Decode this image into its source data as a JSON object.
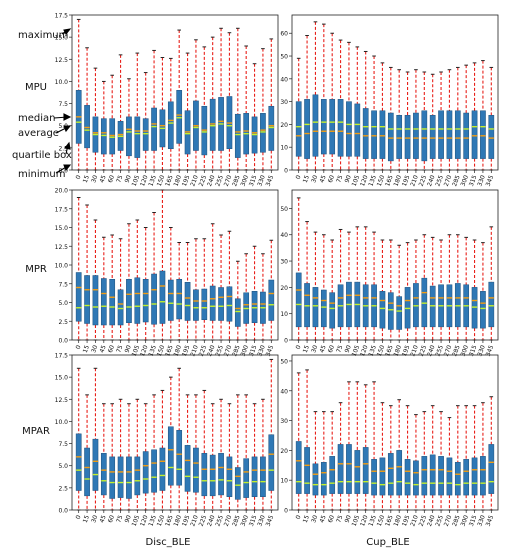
{
  "chart_data": {
    "type": "boxplot",
    "categories": [
      "0",
      "15",
      "30",
      "45",
      "60",
      "75",
      "90",
      "105",
      "120",
      "135",
      "150",
      "165",
      "180",
      "195",
      "210",
      "225",
      "240",
      "255",
      "270",
      "285",
      "300",
      "315",
      "330",
      "345"
    ],
    "row_labels": [
      "MPU",
      "MPR",
      "MPAR"
    ],
    "column_labels": [
      "Disc_BLE",
      "Cup_BLE"
    ],
    "annotations": [
      "maximum",
      "median",
      "average",
      "quartile box",
      "minimum"
    ],
    "colors": {
      "box": "#2f78b5",
      "whisker": "#e8201a",
      "median": "#f39c12",
      "mean": "#c6f02a",
      "cap": "#222222"
    },
    "panels": [
      {
        "row": "MPU",
        "column": "Disc_BLE",
        "ylim": [
          0,
          17.5
        ],
        "yticks": [
          "0.0",
          "2.5",
          "5.0",
          "7.5",
          "10.0",
          "12.5",
          "15.0",
          "17.5"
        ],
        "max": [
          17,
          13.8,
          11.5,
          10,
          10.7,
          13,
          10.3,
          13.2,
          11,
          13.5,
          12.7,
          12.6,
          15.8,
          13.2,
          14.7,
          13.9,
          15,
          16,
          15.5,
          16,
          14,
          12,
          13.7,
          14.8
        ],
        "q3": [
          9,
          7.3,
          6,
          5.8,
          5.8,
          5.5,
          6,
          6,
          5.8,
          7,
          6.8,
          7.7,
          9,
          6.7,
          7.8,
          7.2,
          8,
          8.2,
          8.3,
          6.3,
          6.4,
          6,
          6.4,
          7.2
        ],
        "median": [
          6,
          4.8,
          4.2,
          4.2,
          3.9,
          4,
          4.6,
          4.4,
          4.4,
          5.2,
          5,
          5.6,
          6.2,
          4.3,
          5,
          4.5,
          5.2,
          5.5,
          5.3,
          4.3,
          4.4,
          4.2,
          4.5,
          5
        ],
        "mean": [
          5.4,
          4.5,
          4,
          3.9,
          3.7,
          3.8,
          4.3,
          4.1,
          4.1,
          4.9,
          4.7,
          5.3,
          5.9,
          4.1,
          4.8,
          4.3,
          5,
          5.2,
          5,
          4,
          4.1,
          4,
          4.3,
          4.8
        ],
        "q1": [
          3,
          2.5,
          2,
          1.8,
          1.8,
          2.2,
          1.6,
          1.4,
          2.2,
          2.2,
          2.6,
          2.4,
          3,
          1.8,
          2.2,
          1.7,
          2.2,
          2.2,
          2.4,
          1.4,
          1.8,
          1.9,
          2,
          2.2
        ],
        "min": [
          0,
          0,
          0,
          0,
          0,
          0,
          0,
          0,
          0,
          0,
          0,
          0,
          0,
          0,
          0,
          0,
          0,
          0,
          0,
          0,
          0,
          0,
          0,
          0
        ]
      },
      {
        "row": "MPU",
        "column": "Cup_BLE",
        "ylim": [
          0,
          68
        ],
        "yticks": [
          "0",
          "10",
          "20",
          "30",
          "40",
          "50",
          "60"
        ],
        "max": [
          49,
          59,
          65,
          64,
          60,
          57,
          56,
          54,
          52,
          50,
          47,
          45,
          44,
          43,
          44,
          43,
          42,
          43,
          44,
          45,
          46,
          47,
          48,
          45
        ],
        "q3": [
          30,
          31,
          33,
          31,
          31,
          31,
          30,
          29,
          27,
          26,
          26,
          25,
          24,
          24,
          25,
          26,
          24,
          26,
          26,
          26,
          25,
          26,
          26,
          24
        ],
        "median": [
          15,
          16,
          17,
          17,
          17,
          17,
          16,
          16,
          15,
          15,
          15,
          14,
          14,
          14,
          14,
          14,
          14,
          14,
          14,
          14,
          14,
          15,
          15,
          14
        ],
        "mean": [
          19,
          20,
          21,
          21,
          21,
          21,
          20,
          20,
          19,
          19,
          19,
          18,
          18,
          18,
          18,
          18,
          18,
          18,
          18,
          18,
          18,
          19,
          19,
          18
        ],
        "q1": [
          6,
          5,
          6,
          7,
          7,
          6,
          6,
          6,
          5,
          5,
          5,
          4,
          5,
          5,
          5,
          4,
          5,
          5,
          5,
          5,
          5,
          5,
          5,
          5
        ],
        "min": [
          0,
          0,
          0,
          0,
          0,
          0,
          0,
          0,
          0,
          0,
          0,
          0,
          0,
          0,
          0,
          0,
          0,
          0,
          0,
          0,
          0,
          0,
          0,
          0
        ]
      },
      {
        "row": "MPR",
        "column": "Disc_BLE",
        "ylim": [
          0,
          20
        ],
        "yticks": [
          "0.0",
          "2.5",
          "5.0",
          "7.5",
          "10.0",
          "12.5",
          "15.0",
          "17.5",
          "20.0"
        ],
        "max": [
          19,
          18,
          16,
          13.7,
          14,
          13.5,
          15.5,
          16,
          15,
          17,
          20,
          15,
          13,
          13,
          13.5,
          13.5,
          15.5,
          14,
          14.5,
          10.5,
          11.5,
          12.5,
          11.5,
          13.3
        ],
        "q3": [
          9,
          8.6,
          8.6,
          8.2,
          8.1,
          6.7,
          8.1,
          8.3,
          8.1,
          8.8,
          9.2,
          8,
          8.1,
          7.7,
          6.7,
          6.8,
          7.2,
          7,
          7.1,
          5.5,
          6.3,
          6.5,
          6.4,
          8
        ],
        "median": [
          7,
          6.7,
          6.7,
          6.2,
          5.7,
          4.8,
          6.1,
          6.2,
          6.2,
          6.7,
          7.2,
          6.2,
          6.2,
          5.6,
          5.2,
          5.2,
          5.5,
          5.7,
          5.8,
          4.2,
          4.7,
          4.8,
          4.8,
          6.2
        ],
        "mean": [
          4.3,
          4.6,
          4.4,
          4.5,
          4.4,
          4.2,
          4.4,
          4.5,
          4.6,
          4.8,
          5.1,
          4.9,
          4.8,
          4.6,
          4.3,
          4.3,
          4.5,
          4.5,
          4.6,
          3.8,
          4.2,
          4.3,
          4.3,
          4.7
        ],
        "q1": [
          2.5,
          2.2,
          2,
          2,
          2,
          2,
          2.3,
          2.2,
          2.4,
          2.1,
          2.2,
          2.6,
          2.8,
          2.6,
          2.6,
          2.7,
          2.6,
          2.6,
          2.5,
          1.8,
          2.2,
          2.3,
          2.2,
          2.6
        ],
        "min": [
          0,
          0,
          0,
          0,
          0,
          0,
          0,
          0,
          0,
          0,
          0,
          0,
          0,
          0,
          0,
          0,
          0,
          0,
          0,
          0,
          0,
          0,
          0,
          0
        ]
      },
      {
        "row": "MPR",
        "column": "Cup_BLE",
        "ylim": [
          0,
          57
        ],
        "yticks": [
          "0",
          "10",
          "20",
          "30",
          "40",
          "50"
        ],
        "max": [
          54,
          45,
          41,
          40,
          38,
          42,
          41,
          43,
          43,
          41,
          38,
          38,
          36,
          37,
          38,
          40,
          39,
          38,
          40,
          40,
          39,
          38,
          37,
          43
        ],
        "q3": [
          25.5,
          21.5,
          20,
          19,
          18,
          21,
          22,
          22,
          21,
          21,
          18.5,
          18,
          16.5,
          20,
          21.5,
          23.5,
          20.5,
          21,
          21,
          21.5,
          21,
          20,
          18.5,
          22
        ],
        "median": [
          19,
          17,
          16,
          15,
          14,
          16,
          17,
          17,
          16,
          16,
          15,
          14,
          13,
          15,
          16,
          18,
          16,
          16,
          16,
          16,
          16,
          15,
          14,
          16
        ],
        "mean": [
          13.5,
          13,
          13,
          12.5,
          12,
          13,
          13.5,
          13.5,
          13,
          13,
          12,
          11.5,
          11,
          12,
          13,
          14,
          13,
          13,
          13,
          13,
          13,
          12.5,
          12,
          13
        ],
        "q1": [
          5,
          5,
          5,
          5,
          4.5,
          5,
          5,
          5,
          5,
          5,
          4.5,
          4,
          4,
          4.5,
          5,
          5,
          5,
          5,
          5,
          5,
          5,
          4.5,
          4.5,
          5
        ],
        "min": [
          0,
          0,
          0,
          0,
          0,
          0,
          0,
          0,
          0,
          0,
          0,
          0,
          0,
          0,
          0,
          0,
          0,
          0,
          0,
          0,
          0,
          0,
          0,
          0
        ]
      },
      {
        "row": "MPAR",
        "column": "Disc_BLE",
        "ylim": [
          0,
          17.5
        ],
        "yticks": [
          "0.0",
          "2.5",
          "5.0",
          "7.5",
          "10.0",
          "12.5",
          "15.0",
          "17.5"
        ],
        "max": [
          16,
          13,
          16,
          12,
          12,
          12.5,
          12,
          12.5,
          12,
          13,
          13.5,
          15,
          16,
          13,
          13,
          13.5,
          12,
          12.5,
          12,
          13,
          13,
          12,
          12.5,
          17
        ],
        "q3": [
          8.6,
          7,
          8,
          6.4,
          6,
          6,
          6,
          6,
          6.6,
          6.8,
          7,
          9.4,
          9,
          7.3,
          7,
          6.4,
          6.2,
          6.4,
          6,
          4.8,
          5.8,
          6,
          6,
          8.5
        ],
        "median": [
          6,
          4.8,
          5.5,
          4.5,
          4.3,
          4.3,
          4.3,
          4.5,
          5,
          5.3,
          5.5,
          6.8,
          6.3,
          5.6,
          5.3,
          4.6,
          4.6,
          4.8,
          4.6,
          3.8,
          4.3,
          4.5,
          4.5,
          6.3
        ],
        "mean": [
          4.5,
          3.5,
          4,
          3.3,
          3.1,
          3.1,
          3.1,
          3.3,
          3.5,
          3.7,
          3.9,
          4.8,
          4.6,
          3.8,
          3.7,
          3.3,
          3.3,
          3.4,
          3.3,
          2.8,
          3.1,
          3.2,
          3.2,
          4.5
        ],
        "q1": [
          2.2,
          1.6,
          2.2,
          1.7,
          1.3,
          1.4,
          1.3,
          1.7,
          1.9,
          2,
          2.2,
          2.8,
          2.8,
          2.1,
          2,
          1.6,
          1.6,
          1.7,
          1.5,
          1.2,
          1.4,
          1.5,
          1.5,
          2.2
        ],
        "min": [
          0,
          0,
          0,
          0,
          0,
          0,
          0,
          0,
          0,
          0,
          0,
          0,
          0,
          0,
          0,
          0,
          0,
          0,
          0,
          0,
          0,
          0,
          0,
          0
        ]
      },
      {
        "row": "MPAR",
        "column": "Cup_BLE",
        "ylim": [
          0,
          52
        ],
        "yticks": [
          "0",
          "10",
          "20",
          "30",
          "40",
          "50"
        ],
        "max": [
          46,
          47,
          33,
          33,
          33,
          36,
          43,
          43,
          42,
          43,
          36,
          35,
          37,
          35,
          32,
          33,
          35,
          33,
          31,
          35,
          35,
          35,
          36,
          38
        ],
        "q3": [
          23,
          21,
          15.5,
          16,
          18,
          22,
          22,
          20,
          21,
          17,
          17.5,
          19,
          20,
          17,
          16.5,
          18,
          18.5,
          18,
          17.5,
          16,
          17,
          17.5,
          18,
          22
        ],
        "median": [
          16.5,
          15,
          12,
          12.5,
          13.5,
          15.5,
          15.5,
          14.5,
          15.5,
          13,
          13,
          14,
          14.5,
          13,
          12.5,
          13.5,
          13.5,
          13.5,
          13,
          12,
          13,
          13.5,
          13.5,
          16
        ],
        "mean": [
          9.5,
          9,
          8.5,
          8.5,
          9,
          9.5,
          9.5,
          9.5,
          9.5,
          9,
          8.5,
          9,
          9.5,
          9,
          8.5,
          9,
          9,
          9,
          9,
          8.5,
          9,
          9,
          9,
          9.5
        ],
        "q1": [
          5.5,
          5.5,
          5,
          5,
          5.5,
          5.5,
          5.5,
          5.5,
          5.5,
          5,
          5,
          5,
          5,
          5,
          5,
          5,
          5,
          5,
          5,
          5,
          5,
          5,
          5,
          5.5
        ],
        "min": [
          0,
          0,
          0,
          0,
          0,
          0,
          0,
          0,
          0,
          0,
          0,
          0,
          0,
          0,
          0,
          0,
          0,
          0,
          0,
          0,
          0,
          0,
          0,
          0
        ]
      }
    ]
  }
}
